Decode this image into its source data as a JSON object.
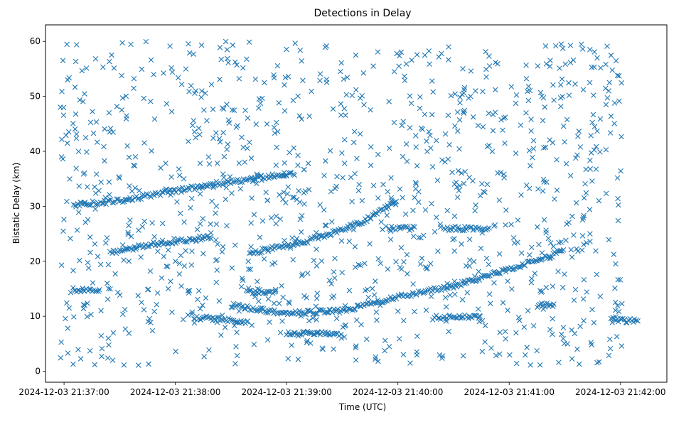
{
  "chart_data": {
    "type": "scatter",
    "title": "Detections in Delay",
    "xlabel": "Time (UTC)",
    "ylabel": "Bistatic Delay (km)",
    "x_ticks": [
      "2024-12-03 21:37:00",
      "2024-12-03 21:38:00",
      "2024-12-03 21:39:00",
      "2024-12-03 21:40:00",
      "2024-12-03 21:41:00",
      "2024-12-03 21:42:00"
    ],
    "xlim": [
      "2024-12-03 21:36:50",
      "2024-12-03 21:42:25"
    ],
    "y_ticks": [
      0,
      10,
      20,
      30,
      40,
      50,
      60
    ],
    "ylim": [
      -2,
      63
    ],
    "marker": "x",
    "color": "#1f77b4",
    "grid": false,
    "legend": "none",
    "series": [
      {
        "note_is_data": true,
        "tracks": [
          {
            "points": [
              [
                "2024-12-03 21:37:05",
                30.2
              ],
              [
                "2024-12-03 21:37:30",
                31.0
              ],
              [
                "2024-12-03 21:37:55",
                32.5
              ],
              [
                "2024-12-03 21:38:20",
                34.0
              ],
              [
                "2024-12-03 21:38:45",
                35.2
              ],
              [
                "2024-12-03 21:39:05",
                36.0
              ]
            ]
          },
          {
            "points": [
              [
                "2024-12-03 21:37:25",
                21.5
              ],
              [
                "2024-12-03 21:37:45",
                23.0
              ],
              [
                "2024-12-03 21:38:05",
                23.8
              ],
              [
                "2024-12-03 21:38:20",
                24.5
              ]
            ]
          },
          {
            "points": [
              [
                "2024-12-03 21:38:30",
                12.0
              ],
              [
                "2024-12-03 21:39:00",
                10.5
              ],
              [
                "2024-12-03 21:39:30",
                11.0
              ],
              [
                "2024-12-03 21:40:00",
                13.5
              ],
              [
                "2024-12-03 21:40:30",
                15.5
              ],
              [
                "2024-12-03 21:41:00",
                18.5
              ],
              [
                "2024-12-03 21:41:30",
                22.0
              ]
            ]
          },
          {
            "points": [
              [
                "2024-12-03 21:38:40",
                21.5
              ],
              [
                "2024-12-03 21:39:10",
                23.5
              ],
              [
                "2024-12-03 21:39:40",
                27.0
              ],
              [
                "2024-12-03 21:40:00",
                31.0
              ]
            ]
          },
          {
            "points": [
              [
                "2024-12-03 21:38:10",
                9.8
              ],
              [
                "2024-12-03 21:38:40",
                9.0
              ]
            ]
          },
          {
            "points": [
              [
                "2024-12-03 21:39:00",
                6.8
              ],
              [
                "2024-12-03 21:39:30",
                6.8
              ]
            ]
          },
          {
            "points": [
              [
                "2024-12-03 21:38:40",
                14.5
              ],
              [
                "2024-12-03 21:38:55",
                14.5
              ]
            ]
          },
          {
            "points": [
              [
                "2024-12-03 21:37:05",
                14.8
              ],
              [
                "2024-12-03 21:37:20",
                14.8
              ]
            ]
          },
          {
            "points": [
              [
                "2024-12-03 21:39:55",
                26.0
              ],
              [
                "2024-12-03 21:40:10",
                26.0
              ]
            ]
          },
          {
            "points": [
              [
                "2024-12-03 21:40:25",
                26.0
              ],
              [
                "2024-12-03 21:40:50",
                25.8
              ]
            ]
          },
          {
            "points": [
              [
                "2024-12-03 21:40:20",
                9.8
              ],
              [
                "2024-12-03 21:40:45",
                9.8
              ]
            ]
          },
          {
            "points": [
              [
                "2024-12-03 21:41:15",
                12.0
              ],
              [
                "2024-12-03 21:41:25",
                12.0
              ]
            ]
          },
          {
            "points": [
              [
                "2024-12-03 21:41:55",
                9.2
              ],
              [
                "2024-12-03 21:42:10",
                9.2
              ]
            ]
          }
        ],
        "scatter_y_range": [
          1,
          60
        ]
      }
    ]
  }
}
